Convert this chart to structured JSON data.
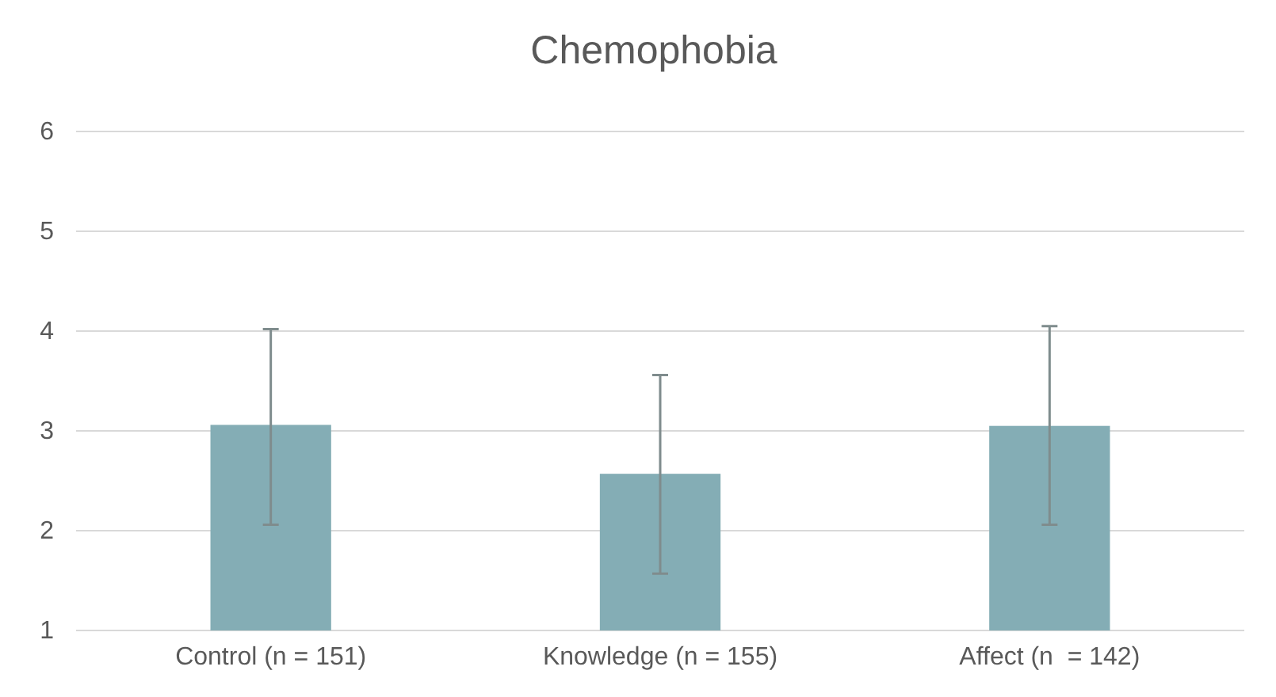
{
  "chart_data": {
    "type": "bar",
    "title": "Chemophobia",
    "categories": [
      "Control (n = 151)",
      "Knowledge (n = 155)",
      "Affect (n  = 142)"
    ],
    "values": [
      3.06,
      2.57,
      3.05
    ],
    "errors": [
      [
        2.06,
        4.02
      ],
      [
        1.57,
        3.56
      ],
      [
        2.06,
        4.05
      ]
    ],
    "color": "#84adb5",
    "ylim": [
      1,
      6
    ],
    "yticks": [
      1,
      2,
      3,
      4,
      5,
      6
    ],
    "grid": "y"
  }
}
